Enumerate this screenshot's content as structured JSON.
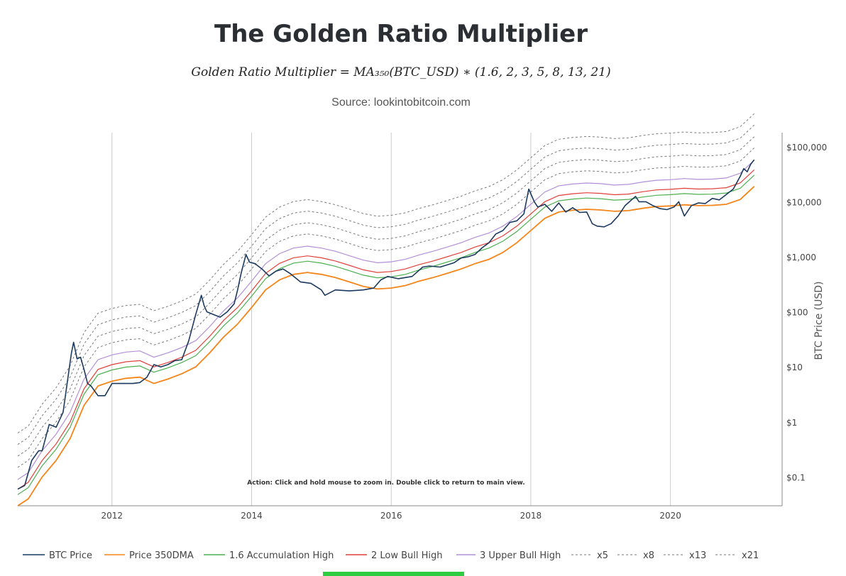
{
  "header": {
    "title": "The Golden Ratio Multiplier",
    "formula": "Golden Ratio Multiplier = MA₃₅₀(BTC_USD) ∗ (1.6, 2, 3, 5, 8, 13, 21)",
    "source": "Source: lookintobitcoin.com"
  },
  "action_text": "Action: Click and hold mouse to zoom in.  Double click to return to main view.",
  "colors": {
    "price": "#1c3a5e",
    "dma": "#f58518",
    "acc": "#4caf50",
    "low": "#e0403a",
    "upper": "#b48fd8",
    "mult": "#7a7a7a",
    "grid": "#cccccc",
    "scroll": "#2ecc40"
  },
  "chart_data": {
    "type": "line",
    "title": "The Golden Ratio Multiplier",
    "xlabel": "",
    "ylabel": "BTC Price (USD)",
    "yscale": "log",
    "xlim": [
      2010.65,
      2021.6
    ],
    "ylim": [
      0.03,
      180000
    ],
    "x_ticks": [
      2012,
      2014,
      2016,
      2018,
      2020
    ],
    "x_tick_labels": [
      "2012",
      "2014",
      "2016",
      "2018",
      "2020"
    ],
    "y_ticks": [
      0.1,
      1,
      10,
      100,
      1000,
      10000,
      100000
    ],
    "y_tick_labels": [
      "$0.1",
      "$1",
      "$10",
      "$100",
      "$1,000",
      "$10,000",
      "$100,000"
    ],
    "grid": "vertical",
    "legend_position": "bottom",
    "legend": [
      {
        "name": "BTC Price",
        "style": "solid",
        "color": "#1c3a5e"
      },
      {
        "name": "Price 350DMA",
        "style": "solid",
        "color": "#f58518"
      },
      {
        "name": "1.6 Accumulation High",
        "style": "solid",
        "color": "#4caf50"
      },
      {
        "name": "2 Low Bull High",
        "style": "solid",
        "color": "#e0403a"
      },
      {
        "name": "3 Upper Bull High",
        "style": "solid",
        "color": "#b48fd8"
      },
      {
        "name": "x5",
        "style": "dashed",
        "color": "#7a7a7a"
      },
      {
        "name": "x8",
        "style": "dashed",
        "color": "#7a7a7a"
      },
      {
        "name": "x13",
        "style": "dashed",
        "color": "#7a7a7a"
      },
      {
        "name": "x21",
        "style": "dashed",
        "color": "#7a7a7a"
      }
    ],
    "multipliers": [
      {
        "name": "1.6 Accumulation High",
        "factor": 1.6,
        "style": "solid",
        "color": "#4caf50"
      },
      {
        "name": "2 Low Bull High",
        "factor": 2,
        "style": "solid",
        "color": "#e0403a"
      },
      {
        "name": "3 Upper Bull High",
        "factor": 3,
        "style": "solid",
        "color": "#b48fd8"
      },
      {
        "name": "x5",
        "factor": 5,
        "style": "dashed",
        "color": "#7a7a7a"
      },
      {
        "name": "x8",
        "factor": 8,
        "style": "dashed",
        "color": "#7a7a7a"
      },
      {
        "name": "x13",
        "factor": 13,
        "style": "dashed",
        "color": "#7a7a7a"
      },
      {
        "name": "x21",
        "factor": 21,
        "style": "dashed",
        "color": "#7a7a7a"
      }
    ],
    "series": [
      {
        "name": "BTC Price",
        "x": [
          2010.65,
          2010.75,
          2010.85,
          2010.95,
          2011.0,
          2011.1,
          2011.2,
          2011.3,
          2011.38,
          2011.42,
          2011.45,
          2011.5,
          2011.55,
          2011.6,
          2011.65,
          2011.7,
          2011.8,
          2011.9,
          2012.0,
          2012.1,
          2012.2,
          2012.3,
          2012.4,
          2012.5,
          2012.6,
          2012.7,
          2012.8,
          2012.9,
          2013.0,
          2013.1,
          2013.2,
          2013.28,
          2013.32,
          2013.36,
          2013.45,
          2013.55,
          2013.65,
          2013.75,
          2013.8,
          2013.85,
          2013.92,
          2013.97,
          2014.05,
          2014.15,
          2014.25,
          2014.35,
          2014.45,
          2014.55,
          2014.7,
          2014.85,
          2015.0,
          2015.05,
          2015.2,
          2015.4,
          2015.6,
          2015.75,
          2015.85,
          2015.95,
          2016.1,
          2016.3,
          2016.45,
          2016.55,
          2016.7,
          2016.9,
          2017.0,
          2017.1,
          2017.2,
          2017.3,
          2017.4,
          2017.5,
          2017.6,
          2017.7,
          2017.8,
          2017.9,
          2017.97,
          2018.05,
          2018.1,
          2018.2,
          2018.3,
          2018.4,
          2018.5,
          2018.6,
          2018.7,
          2018.8,
          2018.88,
          2018.95,
          2019.05,
          2019.15,
          2019.25,
          2019.35,
          2019.45,
          2019.5,
          2019.55,
          2019.65,
          2019.75,
          2019.85,
          2019.95,
          2020.05,
          2020.12,
          2020.2,
          2020.3,
          2020.4,
          2020.5,
          2020.6,
          2020.7,
          2020.8,
          2020.9,
          2021.0,
          2021.05,
          2021.1,
          2021.15,
          2021.2
        ],
        "values": [
          0.06,
          0.07,
          0.2,
          0.3,
          0.3,
          0.9,
          0.8,
          1.5,
          8,
          18,
          28,
          14,
          15,
          9,
          5,
          4.5,
          3,
          3,
          5,
          5,
          5,
          5,
          5.2,
          6.5,
          11,
          10,
          11,
          13,
          13.5,
          30,
          90,
          200,
          130,
          100,
          90,
          80,
          100,
          140,
          250,
          500,
          1100,
          800,
          750,
          600,
          450,
          550,
          600,
          500,
          350,
          330,
          250,
          200,
          250,
          240,
          250,
          270,
          380,
          440,
          400,
          440,
          650,
          680,
          650,
          780,
          950,
          1000,
          1100,
          1450,
          1800,
          2600,
          3000,
          4200,
          4500,
          6000,
          17000,
          10000,
          8000,
          9000,
          6700,
          9500,
          6500,
          7800,
          6400,
          6500,
          4000,
          3600,
          3500,
          4000,
          5500,
          8500,
          11000,
          12500,
          10000,
          10000,
          8500,
          7500,
          7200,
          8000,
          10000,
          5500,
          8500,
          9500,
          9300,
          11500,
          10800,
          13500,
          17000,
          29000,
          40000,
          35000,
          48000,
          58000
        ]
      },
      {
        "name": "Price 350DMA",
        "x": [
          2010.65,
          2010.8,
          2011.0,
          2011.2,
          2011.4,
          2011.6,
          2011.8,
          2012.0,
          2012.2,
          2012.4,
          2012.6,
          2012.8,
          2013.0,
          2013.2,
          2013.4,
          2013.6,
          2013.8,
          2014.0,
          2014.2,
          2014.4,
          2014.6,
          2014.8,
          2015.0,
          2015.2,
          2015.4,
          2015.6,
          2015.8,
          2016.0,
          2016.2,
          2016.4,
          2016.6,
          2016.8,
          2017.0,
          2017.2,
          2017.4,
          2017.6,
          2017.8,
          2018.0,
          2018.2,
          2018.4,
          2018.6,
          2018.8,
          2019.0,
          2019.2,
          2019.4,
          2019.6,
          2019.8,
          2020.0,
          2020.2,
          2020.4,
          2020.6,
          2020.8,
          2021.0,
          2021.2
        ],
        "values": [
          0.03,
          0.04,
          0.1,
          0.2,
          0.5,
          2,
          4.5,
          5.5,
          6.2,
          6.5,
          5,
          6,
          7.5,
          10,
          18,
          35,
          60,
          120,
          250,
          380,
          480,
          520,
          480,
          420,
          350,
          290,
          260,
          270,
          300,
          360,
          420,
          500,
          600,
          750,
          900,
          1200,
          1800,
          3000,
          5000,
          6500,
          7000,
          7300,
          7100,
          6700,
          6900,
          7600,
          8200,
          8400,
          8800,
          8500,
          8600,
          9000,
          11000,
          19000
        ]
      }
    ]
  },
  "legend_labels": {
    "l0": "BTC Price",
    "l1": "Price 350DMA",
    "l2": "1.6 Accumulation High",
    "l3": "2 Low Bull High",
    "l4": "3 Upper Bull High",
    "l5": "x5",
    "l6": "x8",
    "l7": "x13",
    "l8": "x21"
  }
}
